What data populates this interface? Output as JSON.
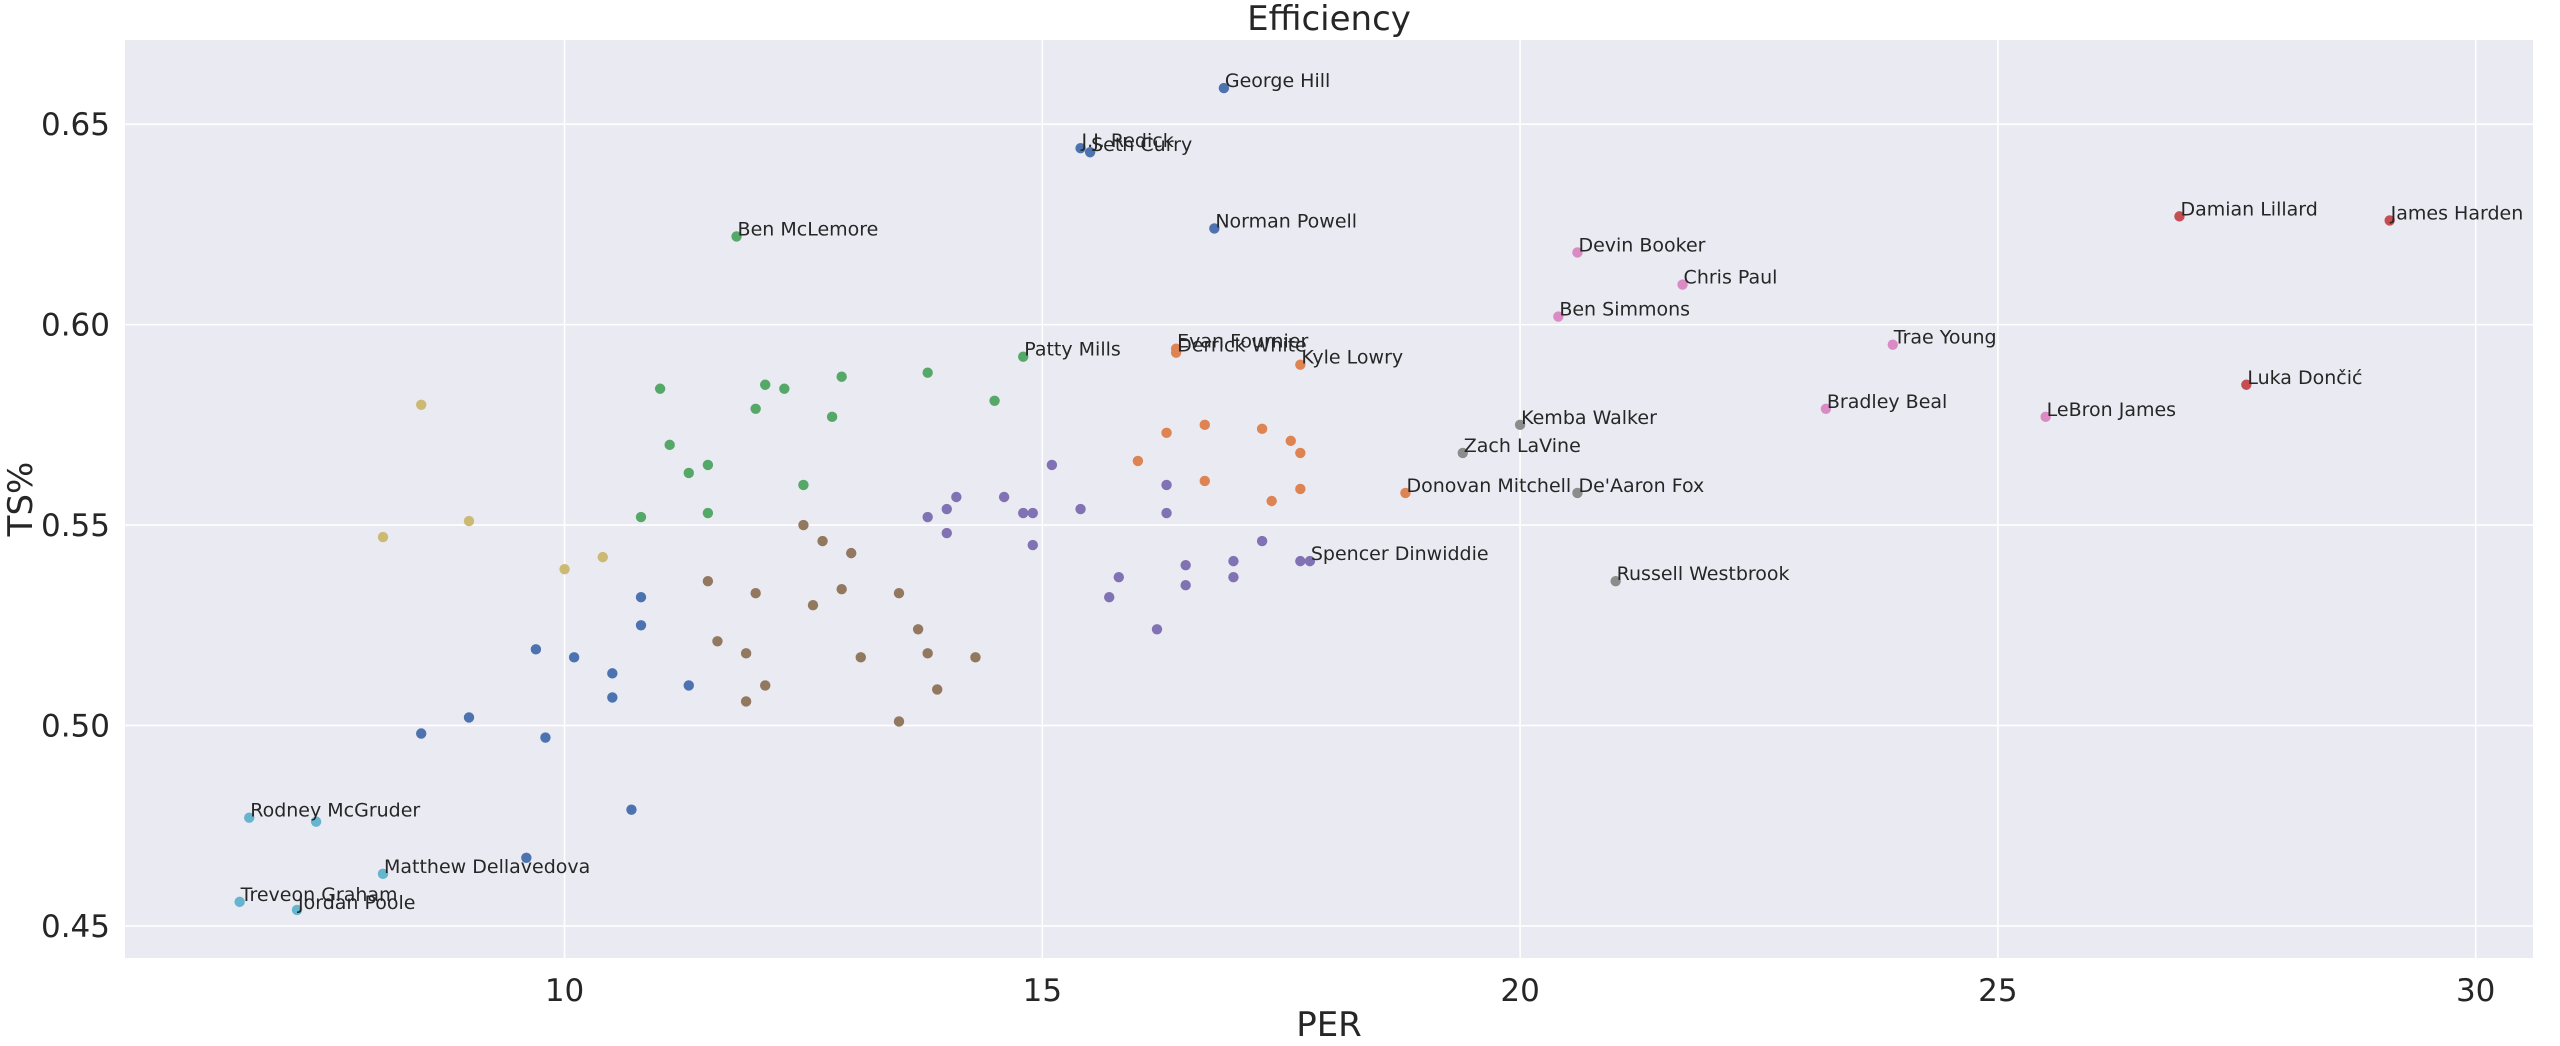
{
  "chart_data": {
    "type": "scatter",
    "title": "Efficiency",
    "xlabel": "PER",
    "ylabel": "TS%",
    "xlim": [
      5.4,
      30.6
    ],
    "ylim": [
      0.442,
      0.671
    ],
    "xticks": [
      10,
      15,
      20,
      25,
      30
    ],
    "yticks": [
      0.45,
      0.5,
      0.55,
      0.6,
      0.65
    ],
    "ytick_labels": [
      "0.45",
      "0.50",
      "0.55",
      "0.60",
      "0.65"
    ],
    "grid": true,
    "background": "#eaeaf2",
    "series": [
      {
        "color": "#4c72b0",
        "points": [
          {
            "x": 16.9,
            "y": 0.659,
            "label": "George Hill"
          },
          {
            "x": 15.4,
            "y": 0.644,
            "label": "J.J. Redick"
          },
          {
            "x": 15.5,
            "y": 0.643,
            "label": "Seth Curry"
          },
          {
            "x": 16.8,
            "y": 0.624,
            "label": "Norman Powell"
          },
          {
            "x": 10.8,
            "y": 0.532
          },
          {
            "x": 10.8,
            "y": 0.525
          },
          {
            "x": 9.7,
            "y": 0.519
          },
          {
            "x": 10.1,
            "y": 0.517
          },
          {
            "x": 10.5,
            "y": 0.513
          },
          {
            "x": 11.3,
            "y": 0.51
          },
          {
            "x": 10.5,
            "y": 0.507
          },
          {
            "x": 9.0,
            "y": 0.502
          },
          {
            "x": 8.5,
            "y": 0.498
          },
          {
            "x": 9.8,
            "y": 0.497
          },
          {
            "x": 10.7,
            "y": 0.479
          },
          {
            "x": 9.6,
            "y": 0.467
          }
        ]
      },
      {
        "color": "#dd8452",
        "points": [
          {
            "x": 16.4,
            "y": 0.594,
            "label": "Evan Fournier"
          },
          {
            "x": 16.4,
            "y": 0.593,
            "label": "Derrick White"
          },
          {
            "x": 17.7,
            "y": 0.59,
            "label": "Kyle Lowry"
          },
          {
            "x": 18.8,
            "y": 0.558,
            "label": "Donovan Mitchell"
          },
          {
            "x": 16.7,
            "y": 0.575
          },
          {
            "x": 17.3,
            "y": 0.574
          },
          {
            "x": 16.3,
            "y": 0.573
          },
          {
            "x": 17.6,
            "y": 0.571
          },
          {
            "x": 17.7,
            "y": 0.568
          },
          {
            "x": 16.0,
            "y": 0.566
          },
          {
            "x": 16.7,
            "y": 0.561
          },
          {
            "x": 17.7,
            "y": 0.559
          },
          {
            "x": 17.4,
            "y": 0.556
          }
        ]
      },
      {
        "color": "#55a868",
        "points": [
          {
            "x": 11.8,
            "y": 0.622,
            "label": "Ben McLemore"
          },
          {
            "x": 14.8,
            "y": 0.592,
            "label": "Patty Mills"
          },
          {
            "x": 13.8,
            "y": 0.588
          },
          {
            "x": 12.9,
            "y": 0.587
          },
          {
            "x": 12.1,
            "y": 0.585
          },
          {
            "x": 11.0,
            "y": 0.584
          },
          {
            "x": 12.3,
            "y": 0.584
          },
          {
            "x": 14.5,
            "y": 0.581
          },
          {
            "x": 12.0,
            "y": 0.579
          },
          {
            "x": 12.8,
            "y": 0.577
          },
          {
            "x": 11.1,
            "y": 0.57
          },
          {
            "x": 11.5,
            "y": 0.565
          },
          {
            "x": 11.3,
            "y": 0.563
          },
          {
            "x": 12.5,
            "y": 0.56
          },
          {
            "x": 11.5,
            "y": 0.553
          },
          {
            "x": 10.8,
            "y": 0.552
          }
        ]
      },
      {
        "color": "#c44e52",
        "points": [
          {
            "x": 26.9,
            "y": 0.627,
            "label": "Damian Lillard"
          },
          {
            "x": 29.1,
            "y": 0.626,
            "label": "James Harden"
          },
          {
            "x": 27.6,
            "y": 0.585,
            "label": "Luka Dončić"
          }
        ]
      },
      {
        "color": "#8172b3",
        "points": [
          {
            "x": 17.8,
            "y": 0.541,
            "label": "Spencer Dinwiddie"
          },
          {
            "x": 15.1,
            "y": 0.565
          },
          {
            "x": 16.3,
            "y": 0.56
          },
          {
            "x": 14.1,
            "y": 0.557
          },
          {
            "x": 14.6,
            "y": 0.557
          },
          {
            "x": 14.0,
            "y": 0.554
          },
          {
            "x": 15.4,
            "y": 0.554
          },
          {
            "x": 14.8,
            "y": 0.553
          },
          {
            "x": 14.9,
            "y": 0.553
          },
          {
            "x": 16.3,
            "y": 0.553
          },
          {
            "x": 13.8,
            "y": 0.552
          },
          {
            "x": 14.0,
            "y": 0.548
          },
          {
            "x": 17.3,
            "y": 0.546
          },
          {
            "x": 14.9,
            "y": 0.545
          },
          {
            "x": 17.0,
            "y": 0.541
          },
          {
            "x": 17.7,
            "y": 0.541
          },
          {
            "x": 16.5,
            "y": 0.54
          },
          {
            "x": 15.8,
            "y": 0.537
          },
          {
            "x": 17.0,
            "y": 0.537
          },
          {
            "x": 16.5,
            "y": 0.535
          },
          {
            "x": 15.7,
            "y": 0.532
          },
          {
            "x": 16.2,
            "y": 0.524
          }
        ]
      },
      {
        "color": "#937860",
        "points": [
          {
            "x": 12.5,
            "y": 0.55
          },
          {
            "x": 12.7,
            "y": 0.546
          },
          {
            "x": 13.0,
            "y": 0.543
          },
          {
            "x": 11.5,
            "y": 0.536
          },
          {
            "x": 12.9,
            "y": 0.534
          },
          {
            "x": 12.0,
            "y": 0.533
          },
          {
            "x": 13.5,
            "y": 0.533
          },
          {
            "x": 12.6,
            "y": 0.53
          },
          {
            "x": 13.7,
            "y": 0.524
          },
          {
            "x": 11.6,
            "y": 0.521
          },
          {
            "x": 11.9,
            "y": 0.518
          },
          {
            "x": 13.8,
            "y": 0.518
          },
          {
            "x": 13.1,
            "y": 0.517
          },
          {
            "x": 14.3,
            "y": 0.517
          },
          {
            "x": 12.1,
            "y": 0.51
          },
          {
            "x": 13.9,
            "y": 0.509
          },
          {
            "x": 11.9,
            "y": 0.506
          },
          {
            "x": 13.5,
            "y": 0.501
          }
        ]
      },
      {
        "color": "#da8bc3",
        "points": [
          {
            "x": 20.6,
            "y": 0.618,
            "label": "Devin Booker"
          },
          {
            "x": 21.7,
            "y": 0.61,
            "label": "Chris Paul"
          },
          {
            "x": 20.4,
            "y": 0.602,
            "label": "Ben Simmons"
          },
          {
            "x": 23.9,
            "y": 0.595,
            "label": "Trae Young"
          },
          {
            "x": 23.2,
            "y": 0.579,
            "label": "Bradley Beal"
          },
          {
            "x": 25.5,
            "y": 0.577,
            "label": "LeBron James"
          }
        ]
      },
      {
        "color": "#8c8c8c",
        "points": [
          {
            "x": 20.0,
            "y": 0.575,
            "label": "Kemba Walker"
          },
          {
            "x": 19.4,
            "y": 0.568,
            "label": "Zach LaVine"
          },
          {
            "x": 20.6,
            "y": 0.558,
            "label": "De'Aaron Fox"
          },
          {
            "x": 21.0,
            "y": 0.536,
            "label": "Russell Westbrook"
          }
        ]
      },
      {
        "color": "#ccb974",
        "points": [
          {
            "x": 8.5,
            "y": 0.58
          },
          {
            "x": 9.0,
            "y": 0.551
          },
          {
            "x": 8.1,
            "y": 0.547
          },
          {
            "x": 10.4,
            "y": 0.542
          },
          {
            "x": 10.0,
            "y": 0.539
          }
        ]
      },
      {
        "color": "#64b5cd",
        "points": [
          {
            "x": 6.7,
            "y": 0.477,
            "label": "Rodney McGruder"
          },
          {
            "x": 7.4,
            "y": 0.476
          },
          {
            "x": 8.1,
            "y": 0.463,
            "label": "Matthew Dellavedova"
          },
          {
            "x": 6.6,
            "y": 0.456,
            "label": "Treveon Graham"
          },
          {
            "x": 7.2,
            "y": 0.454,
            "label": "Jordan Poole"
          }
        ]
      }
    ]
  }
}
